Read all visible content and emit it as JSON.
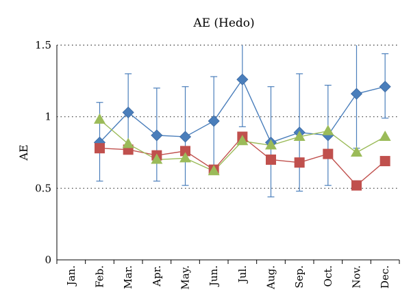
{
  "chart_data": {
    "type": "line",
    "title": "AE (Hedo)",
    "xlabel": "",
    "ylabel": "AE",
    "ylim": [
      0,
      1.5
    ],
    "yticks": [
      0,
      0.5,
      1,
      1.5
    ],
    "ytick_labels": [
      "0",
      "0.5",
      "1",
      "1.5"
    ],
    "grid": "dotted horizontal",
    "legend": "none",
    "categories": [
      "Jan.",
      "Feb.",
      "Mar.",
      "Apr.",
      "May.",
      "Jun.",
      "Jul.",
      "Aug.",
      "Sep.",
      "Oct.",
      "Nov.",
      "Dec."
    ],
    "series": [
      {
        "marker": "diamond",
        "color": "#4a7ebb",
        "values": [
          null,
          0.82,
          1.03,
          0.87,
          0.86,
          0.97,
          1.26,
          0.82,
          0.89,
          0.87,
          1.16,
          1.21
        ],
        "error_low": [
          null,
          0.55,
          0.8,
          0.55,
          0.52,
          0.65,
          0.93,
          0.44,
          0.48,
          0.52,
          0.78,
          0.99
        ],
        "error_high": [
          null,
          1.1,
          1.3,
          1.2,
          1.21,
          1.28,
          1.52,
          1.21,
          1.3,
          1.22,
          1.55,
          1.44
        ]
      },
      {
        "marker": "square",
        "color": "#c0504d",
        "values": [
          null,
          0.78,
          0.77,
          0.73,
          0.76,
          0.63,
          0.86,
          0.7,
          0.68,
          0.74,
          0.52,
          0.69
        ]
      },
      {
        "marker": "triangle",
        "color": "#9bbb59",
        "values": [
          null,
          0.98,
          0.81,
          0.7,
          0.71,
          0.62,
          0.83,
          0.8,
          0.86,
          0.9,
          0.75,
          0.86
        ]
      }
    ]
  }
}
